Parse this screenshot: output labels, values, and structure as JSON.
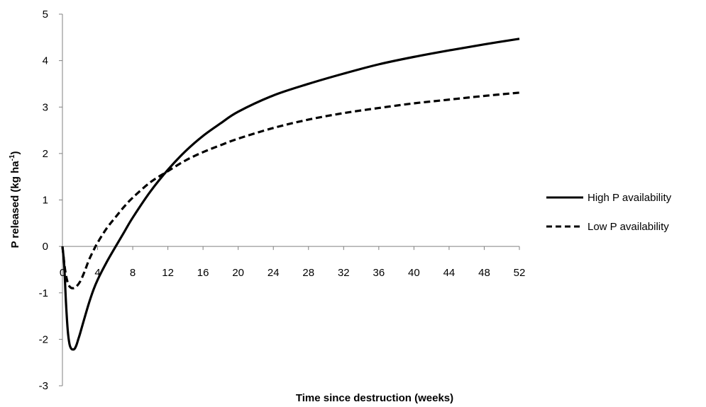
{
  "chart_data": {
    "type": "line",
    "title": "",
    "xlabel": "Time since destruction (weeks)",
    "ylabel_main": "P released (kg ha",
    "ylabel_sup": "-1",
    "ylabel_close": ")",
    "xlim": [
      0,
      52
    ],
    "ylim": [
      -3,
      5
    ],
    "x_ticks": [
      0,
      4,
      8,
      12,
      16,
      20,
      24,
      28,
      32,
      36,
      40,
      44,
      48,
      52
    ],
    "y_ticks": [
      -3,
      -2,
      -1,
      0,
      1,
      2,
      3,
      4,
      5
    ],
    "grid": false,
    "legend_position": "right",
    "series": [
      {
        "name": "High P availability",
        "line_style": "solid",
        "color": "#000000",
        "x": [
          0,
          0.2,
          0.4,
          0.6,
          0.8,
          1.0,
          1.2,
          1.4,
          1.6,
          1.8,
          2.0,
          2.5,
          3,
          3.5,
          4,
          5,
          6,
          7,
          8,
          10,
          12,
          14,
          16,
          18,
          20,
          24,
          28,
          32,
          36,
          40,
          44,
          48,
          52
        ],
        "y": [
          0,
          -0.4,
          -1.2,
          -1.8,
          -2.1,
          -2.2,
          -2.22,
          -2.2,
          -2.12,
          -2.0,
          -1.88,
          -1.55,
          -1.23,
          -0.95,
          -0.72,
          -0.35,
          -0.02,
          0.3,
          0.62,
          1.18,
          1.65,
          2.05,
          2.38,
          2.65,
          2.9,
          3.25,
          3.5,
          3.72,
          3.92,
          4.08,
          4.22,
          4.35,
          4.47
        ]
      },
      {
        "name": "Low P availability",
        "line_style": "dashed",
        "color": "#000000",
        "x": [
          0,
          0.3,
          0.6,
          0.9,
          1.2,
          1.5,
          2.0,
          2.5,
          3,
          3.5,
          4,
          5,
          6,
          7,
          8,
          10,
          12,
          14,
          16,
          18,
          20,
          24,
          28,
          32,
          36,
          40,
          44,
          48,
          52
        ],
        "y": [
          0,
          -0.5,
          -0.78,
          -0.88,
          -0.9,
          -0.88,
          -0.76,
          -0.55,
          -0.3,
          -0.1,
          0.08,
          0.38,
          0.62,
          0.85,
          1.05,
          1.38,
          1.62,
          1.85,
          2.03,
          2.18,
          2.32,
          2.55,
          2.73,
          2.87,
          2.98,
          3.08,
          3.16,
          3.24,
          3.31
        ]
      }
    ]
  }
}
